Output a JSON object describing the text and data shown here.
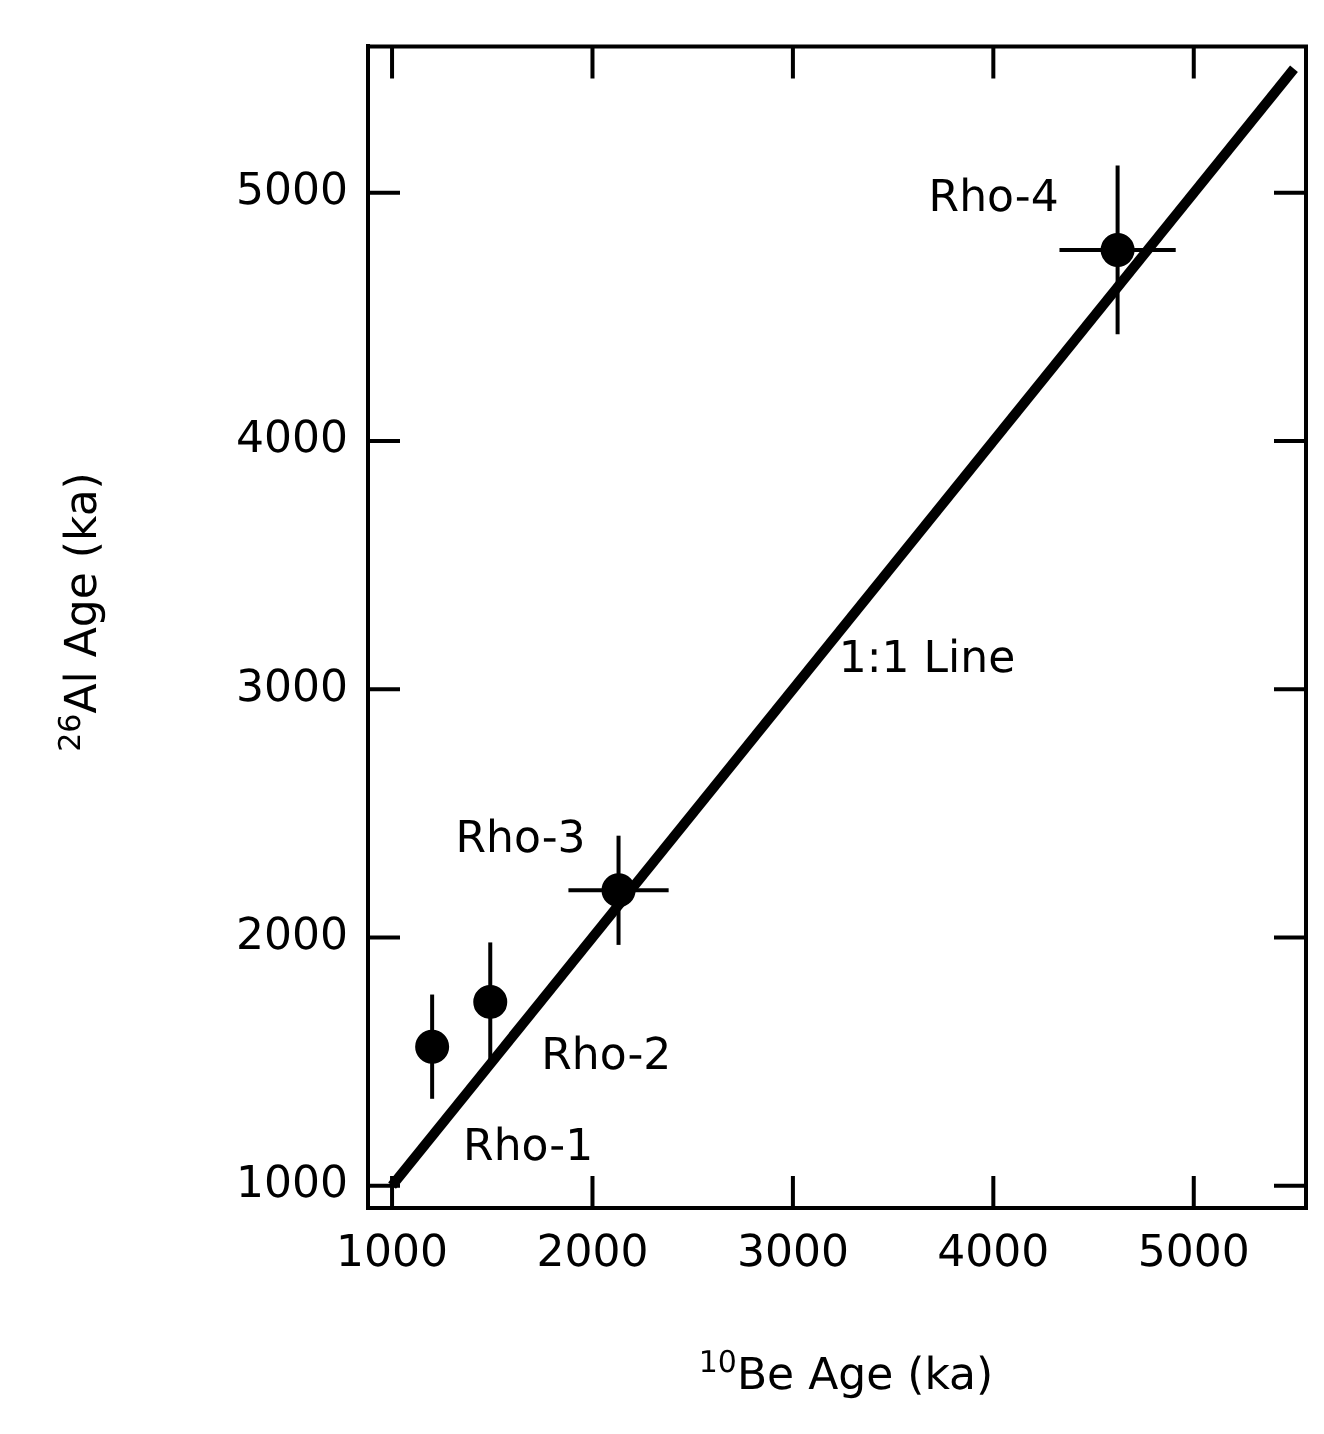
{
  "chart_data": {
    "type": "scatter",
    "xlabel": "$^{10}$Be Age (ka)",
    "ylabel": "$^{26}$Al Age (ka)",
    "xlim": [
      880,
      5560
    ],
    "ylim": [
      910,
      5590
    ],
    "xticks": [
      1000,
      2000,
      3000,
      4000,
      5000
    ],
    "yticks": [
      1000,
      2000,
      3000,
      4000,
      5000
    ],
    "grid": false,
    "legend": false,
    "series": [
      {
        "color": "#000000",
        "marker": "circle",
        "x": [
          1200,
          1490,
          2130,
          4620
        ],
        "values": [
          1560,
          1740,
          2190,
          4770
        ],
        "errors": [
          210,
          240,
          220,
          340
        ],
        "xerrors": [
          null,
          null,
          250,
          290
        ]
      },
      {
        "type": "line",
        "color": "#000000",
        "line_style": "solid",
        "x": [
          1000,
          5500
        ],
        "values": [
          1000,
          5500
        ]
      }
    ],
    "annotations": [
      {
        "text": "Rho-1",
        "x": 1200,
        "y": 1560
      },
      {
        "text": "Rho-2",
        "x": 1490,
        "y": 1740
      },
      {
        "text": "Rho-3",
        "x": 2130,
        "y": 2190
      },
      {
        "text": "Rho-4",
        "x": 4620,
        "y": 4770
      },
      {
        "text": "1:1 Line",
        "x": 3300,
        "y": 3300
      }
    ]
  }
}
